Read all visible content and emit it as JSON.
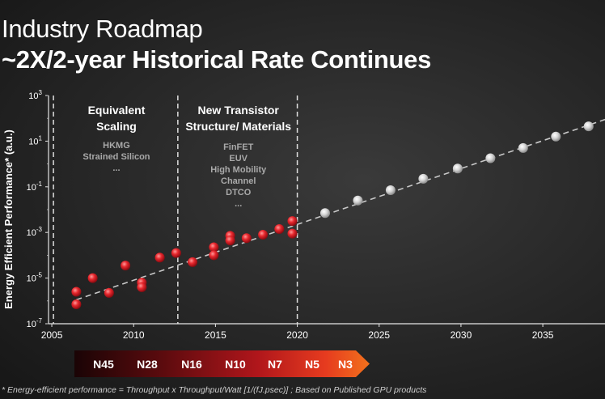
{
  "title": "Industry Roadmap",
  "subtitle": "~2X/2-year Historical Rate Continues",
  "footnote": "* Energy-efficient performance = Throughput x Throughput/Watt [1/(fJ.psec)] ; Based on Published GPU products",
  "chart_data": {
    "type": "scatter",
    "ylabel": "Energy Efficient Performance* (a.u.)",
    "yscale": "log",
    "ylim_exp": [
      -7,
      3
    ],
    "y_ticks": [
      {
        "base": "10",
        "exp": "3"
      },
      {
        "base": "10",
        "exp": "1"
      },
      {
        "base": "10",
        "exp": "-1"
      },
      {
        "base": "10",
        "exp": "-3"
      },
      {
        "base": "10",
        "exp": "-5"
      },
      {
        "base": "10",
        "exp": "-7"
      }
    ],
    "xlim": [
      2004.8,
      2038.8
    ],
    "x_ticks": [
      "2005",
      "2010",
      "2015",
      "2020",
      "2025",
      "2030",
      "2035"
    ],
    "regions": [
      {
        "title_lines": [
          "Equivalent",
          "Scaling"
        ],
        "items": [
          "HKMG",
          "Strained Silicon",
          "..."
        ]
      },
      {
        "title_lines": [
          "New Transistor",
          "Structure/ Materials"
        ],
        "items": [
          "FinFET",
          "EUV",
          "High Mobility",
          "Channel",
          "DTCO",
          "..."
        ]
      }
    ],
    "dividers": [
      2005.1,
      2012.7,
      2020.0
    ],
    "series": [
      {
        "kind": "historical",
        "color": "#e8282e",
        "points": [
          {
            "x": 2006.5,
            "y_exp": -5.6
          },
          {
            "x": 2006.5,
            "y_exp": -6.15
          },
          {
            "x": 2007.5,
            "y_exp": -5.0
          },
          {
            "x": 2008.5,
            "y_exp": -5.65
          },
          {
            "x": 2009.5,
            "y_exp": -4.45
          },
          {
            "x": 2010.5,
            "y_exp": -5.2
          },
          {
            "x": 2010.5,
            "y_exp": -5.4
          },
          {
            "x": 2011.6,
            "y_exp": -4.1
          },
          {
            "x": 2012.6,
            "y_exp": -3.9
          },
          {
            "x": 2013.6,
            "y_exp": -4.3
          },
          {
            "x": 2014.9,
            "y_exp": -3.65
          },
          {
            "x": 2014.9,
            "y_exp": -4.0
          },
          {
            "x": 2015.9,
            "y_exp": -3.15
          },
          {
            "x": 2015.9,
            "y_exp": -3.35
          },
          {
            "x": 2016.9,
            "y_exp": -3.25
          },
          {
            "x": 2017.9,
            "y_exp": -3.1
          },
          {
            "x": 2018.9,
            "y_exp": -2.85
          },
          {
            "x": 2019.7,
            "y_exp": -2.5
          },
          {
            "x": 2019.7,
            "y_exp": -3.05
          }
        ]
      },
      {
        "kind": "projected",
        "color": "#d9d9d9",
        "points": [
          {
            "x": 2021.7,
            "y_exp": -2.15
          },
          {
            "x": 2023.7,
            "y_exp": -1.6
          },
          {
            "x": 2025.7,
            "y_exp": -1.15
          },
          {
            "x": 2027.7,
            "y_exp": -0.65
          },
          {
            "x": 2029.8,
            "y_exp": -0.2
          },
          {
            "x": 2031.8,
            "y_exp": 0.25
          },
          {
            "x": 2033.8,
            "y_exp": 0.7
          },
          {
            "x": 2035.8,
            "y_exp": 1.2
          },
          {
            "x": 2037.8,
            "y_exp": 1.65
          }
        ]
      }
    ],
    "trend": [
      {
        "x": 2006.5,
        "y_exp": -5.95
      },
      {
        "x": 2038.8,
        "y_exp": 1.95
      }
    ],
    "nodes": [
      "N45",
      "N28",
      "N16",
      "N10",
      "N7",
      "N5",
      "N3"
    ]
  }
}
